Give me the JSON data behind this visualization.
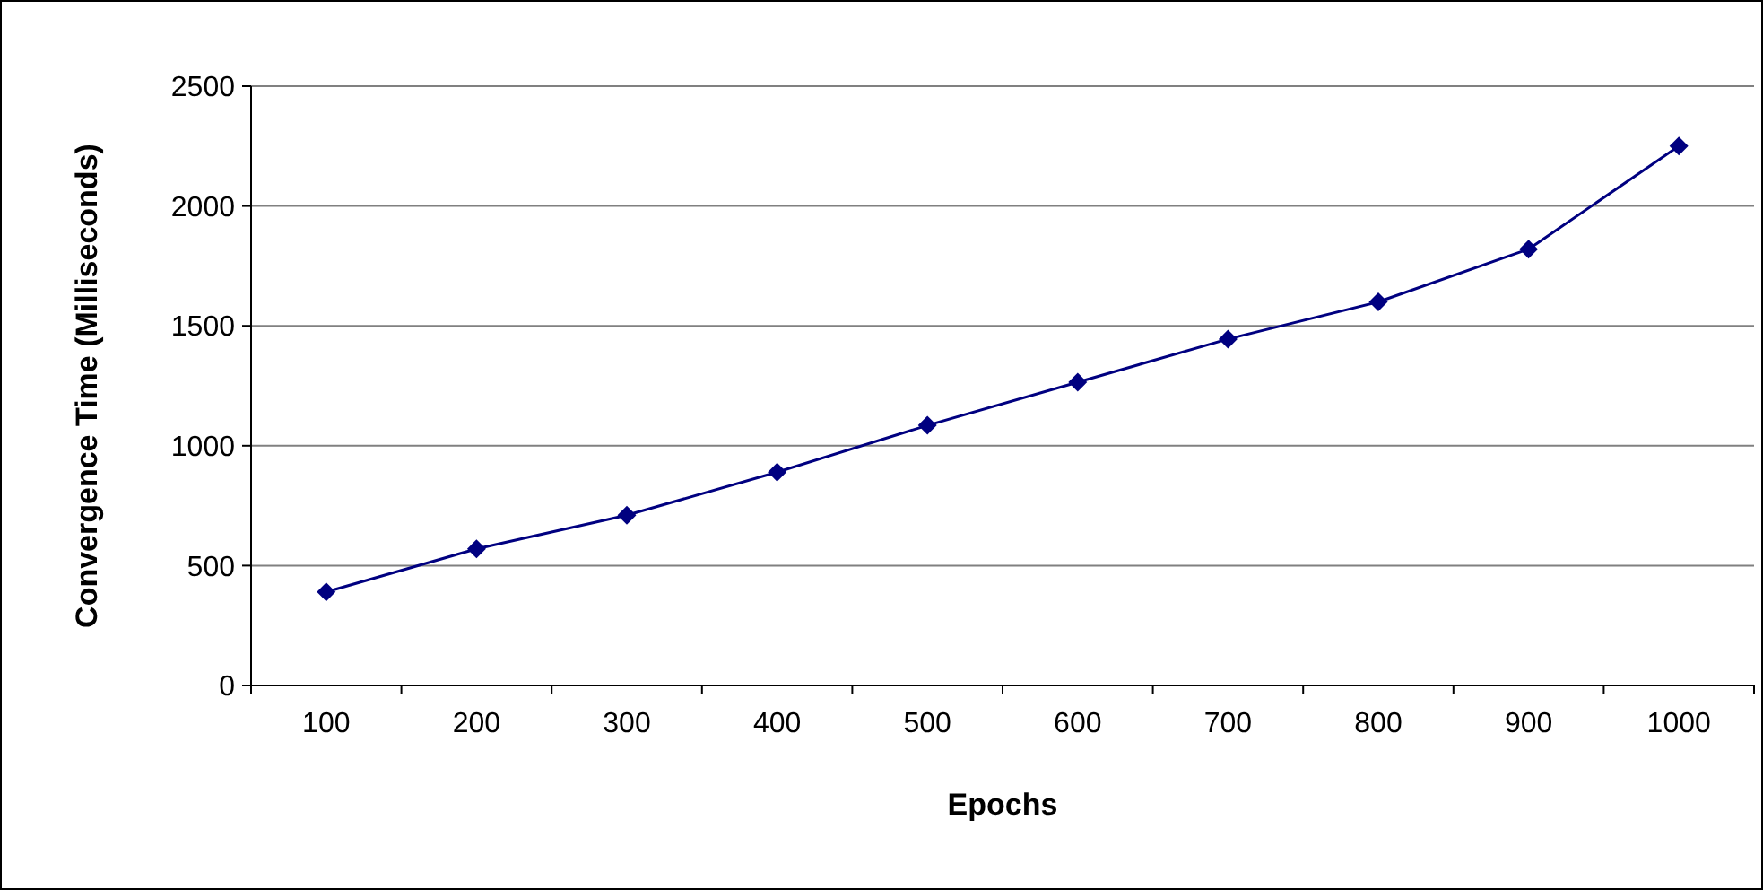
{
  "chart_data": {
    "type": "line",
    "xlabel": "Epochs",
    "ylabel": "Convergence Time (Milliseconds)",
    "categories": [
      "100",
      "200",
      "300",
      "400",
      "500",
      "600",
      "700",
      "800",
      "900",
      "1000"
    ],
    "series": [
      {
        "color": "#000080",
        "values": [
          390,
          570,
          710,
          890,
          1085,
          1265,
          1445,
          1600,
          1820,
          2250
        ]
      }
    ],
    "ylim": [
      0,
      2500
    ],
    "yticks": [
      0,
      500,
      1000,
      1500,
      2000,
      2500
    ],
    "grid": "y",
    "marker": "diamond",
    "line_style": "solid"
  }
}
